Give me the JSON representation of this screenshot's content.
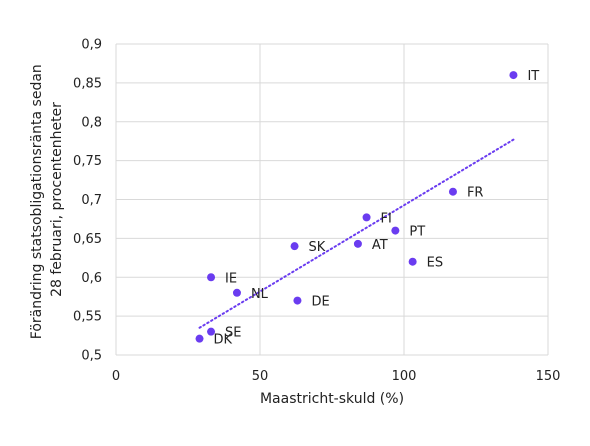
{
  "chart_data": {
    "type": "scatter",
    "xlabel": "Maastricht-skuld (%)",
    "ylabel_lines": [
      "Förändring statsobligationsränta sedan",
      "28 februari, procentenheter"
    ],
    "xlim": [
      0,
      150
    ],
    "ylim": [
      0.5,
      0.9
    ],
    "x_ticks": [
      0,
      50,
      100,
      150
    ],
    "x_tick_labels": [
      "0",
      "50",
      "100",
      "150"
    ],
    "y_ticks": [
      0.5,
      0.55,
      0.6,
      0.65,
      0.7,
      0.75,
      0.8,
      0.85,
      0.9
    ],
    "y_tick_labels": [
      "0,5",
      "0,55",
      "0,6",
      "0,65",
      "0,7",
      "0,75",
      "0,8",
      "0,85",
      "0,9"
    ],
    "grid": true,
    "point_color": "#6a3cf0",
    "trendline": {
      "style": "dotted",
      "from": [
        29,
        0.535
      ],
      "to": [
        138,
        0.777
      ]
    },
    "points": [
      {
        "label": "IT",
        "x": 138,
        "y": 0.86
      },
      {
        "label": "FR",
        "x": 117,
        "y": 0.71
      },
      {
        "label": "FI",
        "x": 87,
        "y": 0.677
      },
      {
        "label": "PT",
        "x": 97,
        "y": 0.66
      },
      {
        "label": "SK",
        "x": 62,
        "y": 0.64
      },
      {
        "label": "AT",
        "x": 84,
        "y": 0.643
      },
      {
        "label": "ES",
        "x": 103,
        "y": 0.62
      },
      {
        "label": "IE",
        "x": 33,
        "y": 0.6
      },
      {
        "label": "NL",
        "x": 42,
        "y": 0.58
      },
      {
        "label": "DE",
        "x": 63,
        "y": 0.57
      },
      {
        "label": "SE",
        "x": 33,
        "y": 0.53
      },
      {
        "label": "DK",
        "x": 29,
        "y": 0.521
      }
    ]
  }
}
